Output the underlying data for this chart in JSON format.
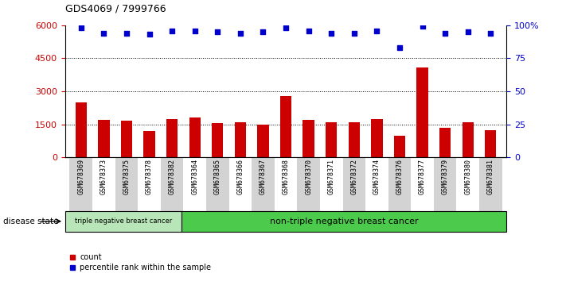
{
  "title": "GDS4069 / 7999766",
  "categories": [
    "GSM678369",
    "GSM678373",
    "GSM678375",
    "GSM678378",
    "GSM678382",
    "GSM678364",
    "GSM678365",
    "GSM678366",
    "GSM678367",
    "GSM678368",
    "GSM678370",
    "GSM678371",
    "GSM678372",
    "GSM678374",
    "GSM678376",
    "GSM678377",
    "GSM678379",
    "GSM678380",
    "GSM678381"
  ],
  "bar_values": [
    2500,
    1700,
    1650,
    1200,
    1750,
    1800,
    1550,
    1600,
    1500,
    2800,
    1700,
    1600,
    1600,
    1750,
    1000,
    4100,
    1350,
    1600,
    1250
  ],
  "dot_values": [
    5900,
    5650,
    5650,
    5600,
    5750,
    5750,
    5700,
    5650,
    5700,
    5900,
    5750,
    5650,
    5650,
    5750,
    5000,
    5950,
    5650,
    5700,
    5650
  ],
  "bar_color": "#cc0000",
  "dot_color": "#0000cc",
  "ylim_left": [
    0,
    6000
  ],
  "ylim_right": [
    0,
    100
  ],
  "yticks_left": [
    0,
    1500,
    3000,
    4500,
    6000
  ],
  "yticks_right": [
    0,
    25,
    50,
    75,
    100
  ],
  "ytick_labels_right": [
    "0",
    "25",
    "50",
    "75",
    "100%"
  ],
  "group1_count": 5,
  "group1_label": "triple negative breast cancer",
  "group2_label": "non-triple negative breast cancer",
  "group1_color": "#b8e6b8",
  "group2_color": "#4cca4c",
  "disease_state_label": "disease state",
  "legend_count_label": "count",
  "legend_percentile_label": "percentile rank within the sample",
  "background_color": "#ffffff",
  "tick_label_color_left": "#cc0000",
  "tick_label_color_right": "#0000cc",
  "alt_col_color": "#d3d3d3",
  "border_color": "#000000"
}
